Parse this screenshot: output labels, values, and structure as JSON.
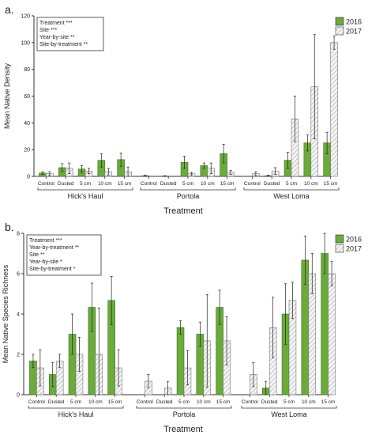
{
  "colors": {
    "bar2016": "#6aab3a",
    "bar2017": "#f2f2f2",
    "hatch": "#999999",
    "axis": "#333333"
  },
  "chart_data": [
    {
      "type": "bar",
      "panel_label": "a.",
      "ylabel": "Mean Native Density",
      "xlabel": "Treatment",
      "ylim": [
        0,
        120
      ],
      "yticks": [
        0,
        20,
        40,
        60,
        80,
        100,
        120
      ],
      "legend": {
        "placement": "top-right",
        "entries": [
          "2016",
          "2017"
        ]
      },
      "stats": [
        "Treatment ***",
        "Site ***",
        "Year-by-site **",
        "Site-by-treatment **"
      ],
      "sites": [
        {
          "name": "Hick's Haul",
          "categories": [
            "Control",
            "Dusted",
            "5 cm",
            "10 cm",
            "15 cm"
          ],
          "series": [
            {
              "name": "2016",
              "values": [
                2.5,
                6.5,
                5.5,
                12,
                12.5
              ],
              "errors": [
                1,
                3,
                2.5,
                5,
                5
              ]
            },
            {
              "name": "2017",
              "values": [
                2,
                6,
                4,
                3.5,
                3.5
              ],
              "errors": [
                1.5,
                4,
                2,
                2.5,
                3.5
              ]
            }
          ]
        },
        {
          "name": "Portola",
          "categories": [
            "Control",
            "Dusted",
            "5 cm",
            "10 cm",
            "15 cm"
          ],
          "series": [
            {
              "name": "2016",
              "values": [
                0.5,
                0.3,
                10.5,
                8,
                17
              ],
              "errors": [
                0.3,
                0.2,
                4.5,
                2,
                7
              ]
            },
            {
              "name": "2017",
              "values": [
                0,
                0,
                2,
                6,
                3
              ],
              "errors": [
                0,
                0,
                1,
                4,
                1.5
              ]
            }
          ]
        },
        {
          "name": "West Loma",
          "categories": [
            "Control",
            "Dusted",
            "5 cm",
            "10 cm",
            "15 cm"
          ],
          "series": [
            {
              "name": "2016",
              "values": [
                0,
                0.5,
                12,
                25,
                25
              ],
              "errors": [
                0,
                0.4,
                6,
                6,
                8
              ]
            },
            {
              "name": "2017",
              "values": [
                2,
                4,
                43,
                67,
                100
              ],
              "errors": [
                1.5,
                2.5,
                17,
                39,
                5
              ]
            }
          ]
        }
      ]
    },
    {
      "type": "bar",
      "panel_label": "b.",
      "ylabel": "Mean Native Species Richness",
      "xlabel": "Treatment",
      "ylim": [
        0,
        8
      ],
      "yticks": [
        0,
        2,
        4,
        6,
        8
      ],
      "legend": {
        "placement": "top-right",
        "entries": [
          "2016",
          "2017"
        ]
      },
      "stats": [
        "Treatment ***",
        "Year-by-treatment **",
        "Site **",
        "Year-by-site *",
        "Site-by-treatment *"
      ],
      "sites": [
        {
          "name": "Hick's Haul",
          "categories": [
            "Control",
            "Dusted",
            "5 cm",
            "10 cm",
            "15 cm"
          ],
          "series": [
            {
              "name": "2016",
              "values": [
                1.67,
                1,
                3,
                4.33,
                4.67
              ],
              "errors": [
                0.33,
                0.6,
                1,
                1.2,
                1.2
              ]
            },
            {
              "name": "2017",
              "values": [
                1.33,
                1.67,
                2,
                2,
                1.33
              ],
              "errors": [
                0.9,
                0.33,
                0.85,
                2.3,
                0.9
              ]
            }
          ]
        },
        {
          "name": "Portola",
          "categories": [
            "Control",
            "Dusted",
            "5 cm",
            "10 cm",
            "15 cm"
          ],
          "series": [
            {
              "name": "2016",
              "values": [
                0,
                0,
                3.33,
                3,
                4.33
              ],
              "errors": [
                0,
                0,
                0.33,
                0.6,
                0.85
              ]
            },
            {
              "name": "2017",
              "values": [
                0.67,
                0.33,
                1.33,
                2.67,
                2.67
              ],
              "errors": [
                0.33,
                0.33,
                0.85,
                2.3,
                1.2
              ]
            }
          ]
        },
        {
          "name": "West Loma",
          "categories": [
            "Control",
            "Dusted",
            "5 cm",
            "10 cm",
            "15 cm"
          ],
          "series": [
            {
              "name": "2016",
              "values": [
                0,
                0.33,
                4,
                6.67,
                7
              ],
              "errors": [
                0,
                0.33,
                1.5,
                1.2,
                1
              ]
            },
            {
              "name": "2017",
              "values": [
                1,
                3.33,
                4.67,
                6,
                6
              ],
              "errors": [
                0.6,
                1.5,
                0.9,
                1,
                0.6
              ]
            }
          ]
        }
      ]
    }
  ]
}
